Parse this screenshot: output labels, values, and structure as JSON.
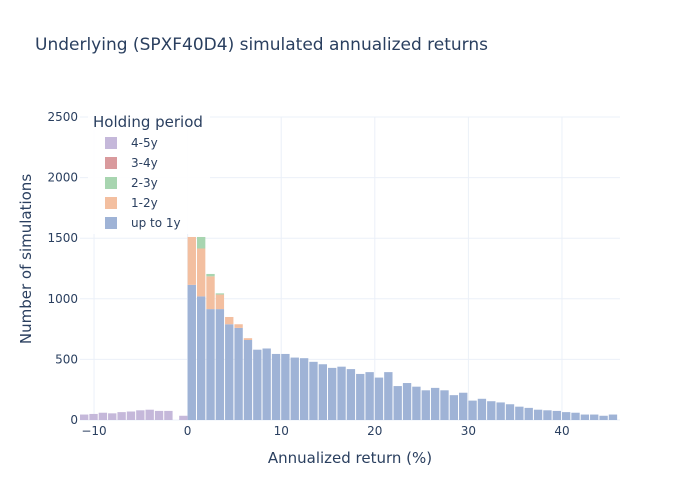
{
  "chart_data": {
    "type": "bar",
    "stacked": true,
    "title": "Underlying (SPXF40D4) simulated annualized returns",
    "xlabel": "Annualized return (%)",
    "ylabel": "Number of simulations",
    "xlim": [
      -11.5,
      46.2
    ],
    "ylim": [
      0,
      2500
    ],
    "bin_width": 1,
    "xticks": [
      -10,
      0,
      10,
      20,
      30,
      40
    ],
    "yticks": [
      0,
      500,
      1000,
      1500,
      2000,
      2500
    ],
    "grid": true,
    "legend": {
      "title": "Holding period",
      "position": "top-left"
    },
    "series": [
      {
        "name": "up to 1y",
        "color": "#9fb3d6",
        "bins": [
          [
            0,
            1115
          ],
          [
            1,
            1020
          ],
          [
            2,
            915
          ],
          [
            3,
            915
          ],
          [
            4,
            790
          ],
          [
            5,
            760
          ],
          [
            6,
            660
          ],
          [
            7,
            580
          ],
          [
            8,
            590
          ],
          [
            9,
            545
          ],
          [
            10,
            545
          ],
          [
            11,
            515
          ],
          [
            12,
            510
          ],
          [
            13,
            480
          ],
          [
            14,
            460
          ],
          [
            15,
            430
          ],
          [
            16,
            440
          ],
          [
            17,
            420
          ],
          [
            18,
            380
          ],
          [
            19,
            395
          ],
          [
            20,
            350
          ],
          [
            21,
            395
          ],
          [
            22,
            280
          ],
          [
            23,
            305
          ],
          [
            24,
            275
          ],
          [
            25,
            245
          ],
          [
            26,
            265
          ],
          [
            27,
            245
          ],
          [
            28,
            205
          ],
          [
            29,
            225
          ],
          [
            30,
            160
          ],
          [
            31,
            175
          ],
          [
            32,
            155
          ],
          [
            33,
            145
          ],
          [
            34,
            130
          ],
          [
            35,
            110
          ],
          [
            36,
            100
          ],
          [
            37,
            85
          ],
          [
            38,
            80
          ],
          [
            39,
            75
          ],
          [
            40,
            65
          ],
          [
            41,
            60
          ],
          [
            42,
            45
          ],
          [
            43,
            45
          ],
          [
            44,
            35
          ],
          [
            45,
            45
          ]
        ]
      },
      {
        "name": "1-2y",
        "color": "#f3bfa0",
        "bins": [
          [
            0,
            395
          ],
          [
            1,
            395
          ],
          [
            2,
            270
          ],
          [
            3,
            120
          ],
          [
            4,
            60
          ],
          [
            5,
            30
          ],
          [
            6,
            15
          ]
        ]
      },
      {
        "name": "2-3y",
        "color": "#a8d5b0",
        "bins": [
          [
            1,
            95
          ],
          [
            2,
            20
          ],
          [
            3,
            10
          ]
        ]
      },
      {
        "name": "3-4y",
        "color": "#d99a9d",
        "bins": []
      },
      {
        "name": "4-5y",
        "color": "#c5b8da",
        "bins": [
          [
            -11.5,
            45
          ],
          [
            -10.5,
            50
          ],
          [
            -9.5,
            60
          ],
          [
            -8.5,
            55
          ],
          [
            -7.5,
            65
          ],
          [
            -6.5,
            70
          ],
          [
            -5.5,
            80
          ],
          [
            -4.5,
            85
          ],
          [
            -3.5,
            75
          ],
          [
            -2.5,
            75
          ],
          [
            -0.9,
            35
          ]
        ]
      }
    ]
  }
}
